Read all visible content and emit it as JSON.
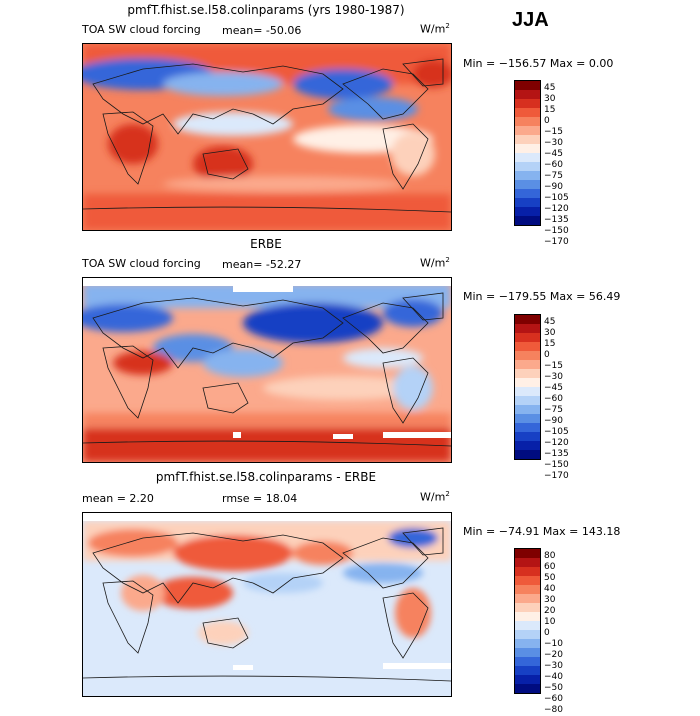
{
  "season": "JJA",
  "panels": [
    {
      "title": "pmfT.fhist.se.l58.colinparams (yrs 1980-1987)",
      "left_label": "TOA SW cloud forcing",
      "stat_text": "mean= -50.06",
      "unit_base": "W/m",
      "unit_exp": "2",
      "minmax": "Min = −156.57  Max =    0.00",
      "colorbar_labels": [
        "45",
        "30",
        "15",
        "0",
        "−15",
        "−30",
        "−45",
        "−60",
        "−75",
        "−90",
        "−105",
        "−120",
        "−135",
        "−150",
        "−170"
      ],
      "colorbar_colors": [
        "#7f0000",
        "#b41414",
        "#d7301f",
        "#ef5a3a",
        "#f6825e",
        "#fba98c",
        "#fdd1bb",
        "#fff0e6",
        "#dbe9fb",
        "#b4d2f7",
        "#86b3ef",
        "#5a8fe4",
        "#3466d9",
        "#1740c4",
        "#0720a8",
        "#000c80"
      ]
    },
    {
      "title": "ERBE",
      "left_label": "TOA SW cloud forcing",
      "stat_text": "mean= -52.27",
      "unit_base": "W/m",
      "unit_exp": "2",
      "minmax": "Min = −179.55  Max =   56.49",
      "colorbar_labels": [
        "45",
        "30",
        "15",
        "0",
        "−15",
        "−30",
        "−45",
        "−60",
        "−75",
        "−90",
        "−105",
        "−120",
        "−135",
        "−150",
        "−170"
      ],
      "colorbar_colors": [
        "#7f0000",
        "#b41414",
        "#d7301f",
        "#ef5a3a",
        "#f6825e",
        "#fba98c",
        "#fdd1bb",
        "#fff0e6",
        "#dbe9fb",
        "#b4d2f7",
        "#86b3ef",
        "#5a8fe4",
        "#3466d9",
        "#1740c4",
        "#0720a8",
        "#000c80"
      ]
    },
    {
      "title": "pmfT.fhist.se.l58.colinparams - ERBE",
      "left_label": "mean =    2.20",
      "stat_text": "rmse =   18.04",
      "unit_base": "W/m",
      "unit_exp": "2",
      "minmax": "Min =  −74.91  Max =  143.18",
      "colorbar_labels": [
        "80",
        "60",
        "50",
        "40",
        "30",
        "20",
        "10",
        "0",
        "−10",
        "−20",
        "−30",
        "−40",
        "−50",
        "−60",
        "−80"
      ],
      "colorbar_colors": [
        "#7f0000",
        "#b41414",
        "#d7301f",
        "#ef5a3a",
        "#f6825e",
        "#fba98c",
        "#fdd1bb",
        "#fff0e6",
        "#dbe9fb",
        "#b4d2f7",
        "#86b3ef",
        "#5a8fe4",
        "#3466d9",
        "#1740c4",
        "#0720a8",
        "#000c80"
      ]
    }
  ],
  "colors": {
    "coast": "#1a1a1a",
    "missing": "#ffffff"
  }
}
